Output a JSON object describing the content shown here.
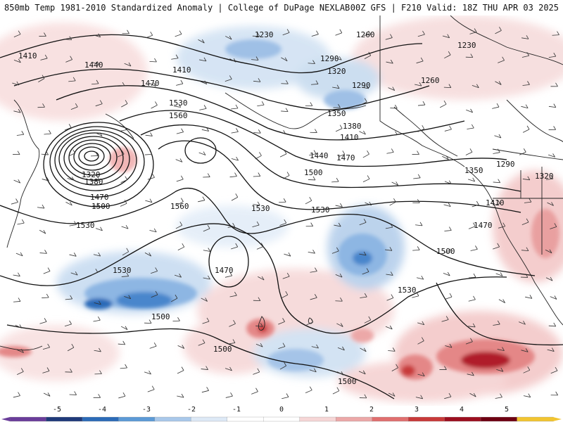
{
  "header": {
    "title": "850mb Temp 1981-2010 Standardized Anomaly | College of DuPage NEXLAB",
    "run_info": "00Z GFS | F210 Valid: 18Z THU APR 03 2025"
  },
  "contour_labels": [
    "1230",
    "1260",
    "1230",
    "1410",
    "1440",
    "1410",
    "1470",
    "1530",
    "1560",
    "1290",
    "1320",
    "1290",
    "1260",
    "1350",
    "1380",
    "1410",
    "1440",
    "1470",
    "1500",
    "1320",
    "1380",
    "1470",
    "1500",
    "1530",
    "1560",
    "1530",
    "1530",
    "1470",
    "1530",
    "1500",
    "1500",
    "1500",
    "1530",
    "1470",
    "1500",
    "1410",
    "1350",
    "1290",
    "1320"
  ],
  "colorbar": {
    "labels": [
      "-5",
      "-4",
      "-3",
      "-2",
      "-1",
      "0",
      "1",
      "2",
      "3",
      "4",
      "5"
    ],
    "colors": [
      "#6a3d9a",
      "#1f3a7a",
      "#2c6bb8",
      "#5c9ad6",
      "#a9c8ea",
      "#dde9f6",
      "#ffffff",
      "#ffffff",
      "#f6d6d6",
      "#eca8a8",
      "#e06f6f",
      "#c83a3a",
      "#9c0f1f",
      "#6e0012",
      "#f2c531"
    ]
  }
}
